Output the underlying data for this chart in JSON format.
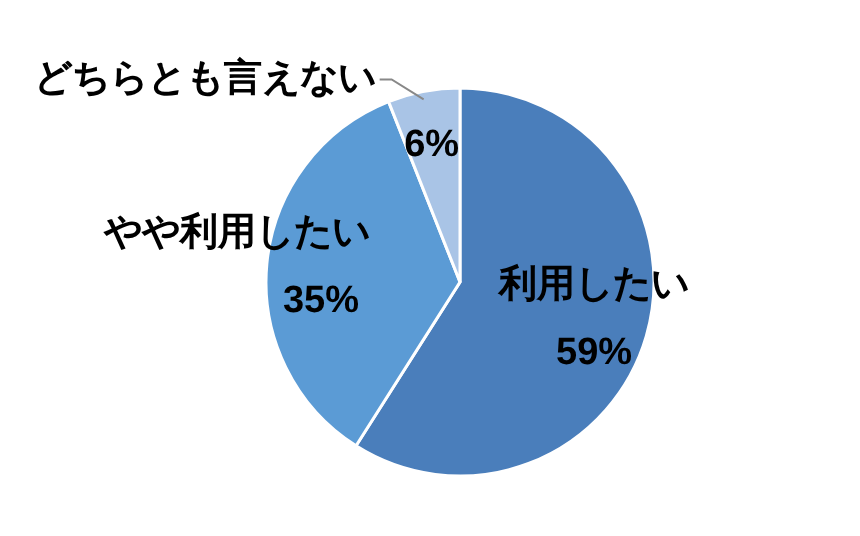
{
  "chart_data": {
    "type": "pie",
    "categories": [
      "利用したい",
      "やや利用したい",
      "どちらとも言えない"
    ],
    "values": [
      59,
      35,
      6
    ],
    "colors": [
      "#4a7ebb",
      "#5b9bd5",
      "#a9c4e6"
    ],
    "value_labels": [
      "59%",
      "35%",
      "6%"
    ],
    "legend": false
  }
}
